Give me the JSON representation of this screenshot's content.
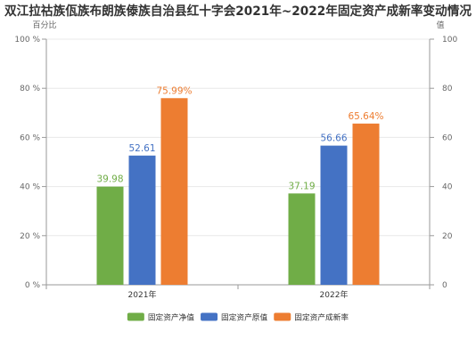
{
  "chart_data": {
    "type": "bar",
    "title": "双江拉祜族佤族布朗族傣族自治县红十字会2021年~2022年固定资产成新率变动情况",
    "categories": [
      "2021年",
      "2022年"
    ],
    "y_left": {
      "label": "百分比",
      "range": [
        0,
        100
      ],
      "ticks": [
        {
          "value": 0,
          "label": "0 %"
        },
        {
          "value": 20,
          "label": "20 %"
        },
        {
          "value": 40,
          "label": "40 %"
        },
        {
          "value": 60,
          "label": "60 %"
        },
        {
          "value": 80,
          "label": "80 %"
        },
        {
          "value": 100,
          "label": "100 %"
        }
      ]
    },
    "y_right": {
      "label": "值",
      "range": [
        0,
        100
      ],
      "ticks": [
        {
          "value": 0,
          "label": "0"
        },
        {
          "value": 20,
          "label": "20"
        },
        {
          "value": 40,
          "label": "40"
        },
        {
          "value": 60,
          "label": "60"
        },
        {
          "value": 80,
          "label": "80"
        },
        {
          "value": 100,
          "label": "100"
        }
      ]
    },
    "series": [
      {
        "name": "固定资产净值",
        "color": "#70ad47",
        "values": [
          39.98,
          37.19
        ],
        "labels": [
          "39.98",
          "37.19"
        ]
      },
      {
        "name": "固定资产原值",
        "color": "#4472c4",
        "values": [
          52.61,
          56.66
        ],
        "labels": [
          "52.61",
          "56.66"
        ]
      },
      {
        "name": "固定资产成新率",
        "color": "#ed7d31",
        "values": [
          75.99,
          65.64
        ],
        "labels": [
          "75.99%",
          "65.64%"
        ]
      }
    ],
    "grid": true,
    "legend": "bottom"
  }
}
